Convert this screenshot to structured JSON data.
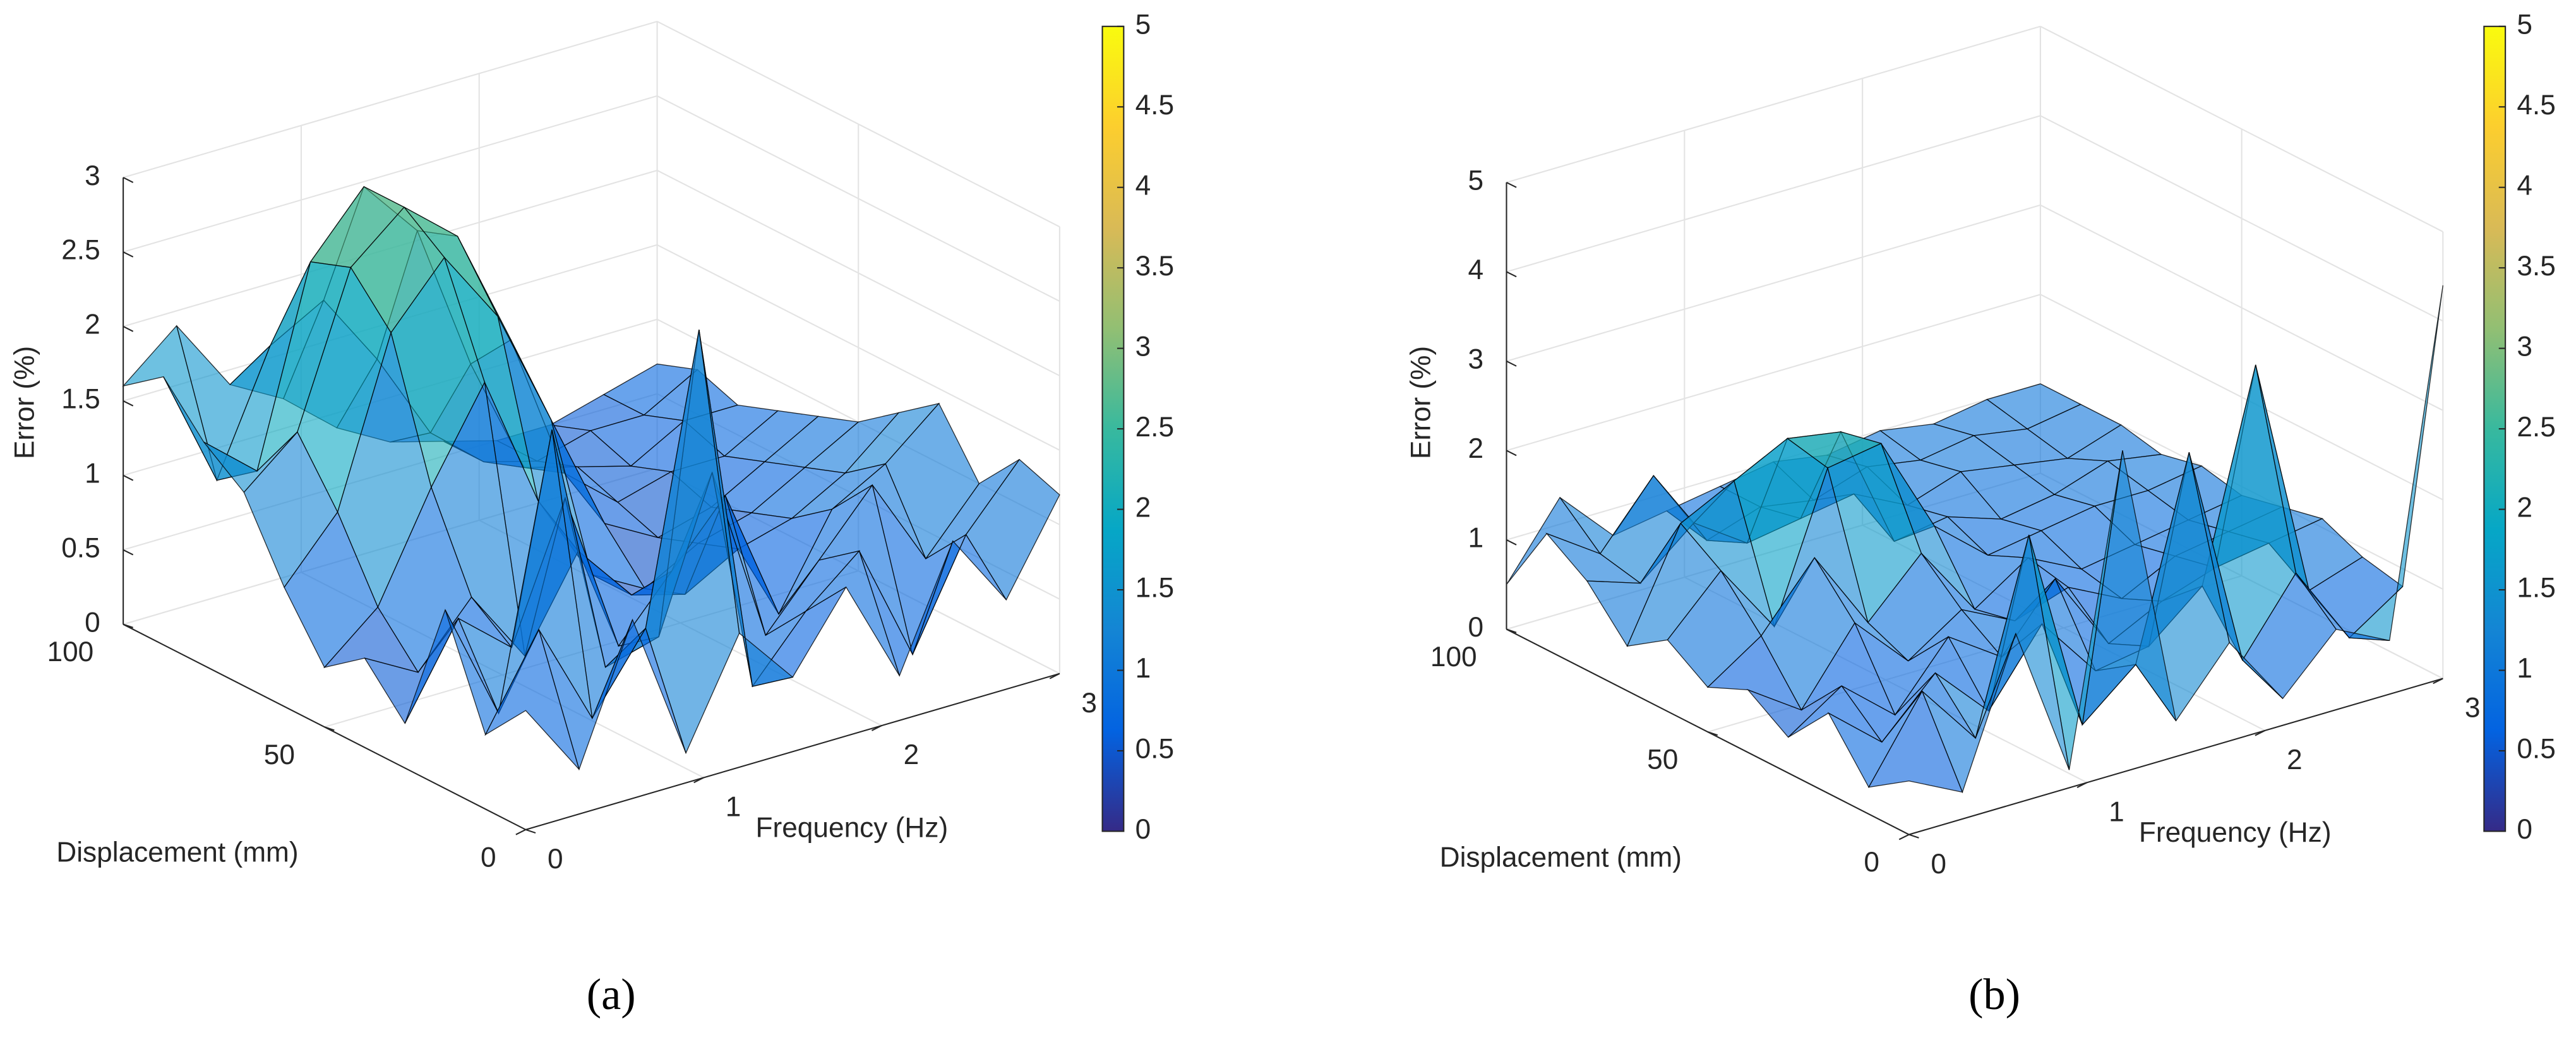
{
  "chart_data": [
    {
      "type": "surface",
      "caption": "(a)",
      "xlabel": "Frequency (Hz)",
      "ylabel": "Displacement (mm)",
      "zlabel": "Error (%)",
      "x": [
        0,
        0.3,
        0.6,
        0.9,
        1.2,
        1.5,
        1.8,
        2.1,
        2.4,
        2.7,
        3.0
      ],
      "y": [
        0,
        10,
        20,
        30,
        40,
        50,
        60,
        70,
        80,
        90,
        100
      ],
      "z": [
        [
          0.8,
          0.3,
          1.2,
          0.2,
          0.9,
          0.5,
          1.0,
          0.3,
          1.1,
          0.6,
          1.2
        ],
        [
          0.5,
          1.1,
          0.4,
          0.9,
          2.8,
          0.3,
          0.7,
          1.0,
          0.2,
          0.9,
          1.3
        ],
        [
          1.2,
          0.4,
          2.2,
          0.5,
          0.6,
          1.6,
          0.4,
          0.8,
          1.2,
          0.6,
          1.0
        ],
        [
          0.3,
          0.9,
          0.6,
          1.5,
          0.4,
          0.8,
          1.2,
          0.3,
          0.9,
          1.1,
          1.4
        ],
        [
          0.6,
          0.4,
          0.8,
          0.3,
          0.9,
          0.5,
          0.4,
          0.6,
          0.7,
          0.9,
          1.2
        ],
        [
          0.4,
          0.7,
          1.4,
          2.0,
          1.1,
          0.5,
          0.3,
          0.5,
          0.6,
          0.8,
          1.0
        ],
        [
          0.8,
          1.2,
          2.3,
          2.7,
          2.2,
          1.4,
          0.6,
          0.4,
          0.5,
          0.7,
          0.9
        ],
        [
          1.3,
          1.6,
          2.6,
          2.9,
          2.6,
          1.8,
          0.8,
          0.5,
          0.6,
          0.6,
          0.8
        ],
        [
          1.5,
          1.2,
          2.5,
          2.9,
          2.5,
          1.5,
          0.7,
          0.6,
          0.5,
          0.7,
          0.7
        ],
        [
          1.8,
          1.0,
          1.8,
          2.0,
          1.5,
          0.9,
          0.6,
          0.5,
          0.6,
          0.6,
          0.8
        ],
        [
          1.6,
          1.9,
          1.4,
          1.2,
          0.9,
          0.7,
          0.6,
          0.5,
          0.5,
          0.6,
          0.7
        ]
      ],
      "xlim": [
        0,
        3
      ],
      "xticks": [
        0,
        1,
        2,
        3
      ],
      "ylim": [
        0,
        100
      ],
      "yticks": [
        0,
        50,
        100
      ],
      "zlim": [
        0,
        3
      ],
      "zticks": [
        0,
        0.5,
        1,
        1.5,
        2,
        2.5,
        3
      ],
      "clim": [
        0,
        5
      ],
      "cticks": [
        0,
        0.5,
        1,
        1.5,
        2,
        2.5,
        3,
        3.5,
        4,
        4.5,
        5
      ],
      "colormap": [
        "#352a87",
        "#0363e1",
        "#1485d4",
        "#06a7c6",
        "#38b99e",
        "#92bf73",
        "#d9ba56",
        "#fcce2e",
        "#f9fb0e"
      ],
      "grid": true
    },
    {
      "type": "surface",
      "caption": "(b)",
      "xlabel": "Frequency (Hz)",
      "ylabel": "Displacement (mm)",
      "zlabel": "Error (%)",
      "x": [
        0,
        0.3,
        0.6,
        0.9,
        1.2,
        1.5,
        1.8,
        2.1,
        2.4,
        2.7,
        3.0
      ],
      "y": [
        0,
        10,
        20,
        30,
        40,
        50,
        60,
        70,
        80,
        90,
        100
      ],
      "z": [
        [
          0.6,
          0.3,
          1.9,
          0.2,
          3.6,
          0.4,
          1.1,
          0.3,
          0.9,
          0.6,
          4.4
        ],
        [
          0.3,
          1.2,
          0.5,
          2.6,
          0.3,
          0.8,
          3.0,
          0.5,
          1.3,
          0.4,
          0.8
        ],
        [
          0.9,
          0.4,
          1.0,
          0.4,
          1.2,
          0.5,
          0.6,
          1.1,
          3.4,
          0.7,
          0.9
        ],
        [
          0.4,
          0.8,
          0.3,
          1.0,
          0.6,
          1.3,
          0.4,
          0.7,
          0.9,
          1.0,
          1.1
        ],
        [
          0.7,
          0.3,
          1.1,
          0.5,
          0.9,
          0.6,
          0.8,
          0.5,
          0.8,
          0.9,
          1.0
        ],
        [
          0.5,
          0.9,
          1.6,
          0.7,
          1.3,
          0.5,
          0.9,
          0.6,
          0.7,
          0.8,
          0.9
        ],
        [
          0.8,
          1.4,
          0.6,
          2.2,
          2.3,
          1.2,
          0.7,
          0.8,
          0.9,
          0.9,
          1.0
        ],
        [
          0.5,
          1.7,
          2.0,
          2.3,
          2.2,
          0.8,
          0.9,
          0.7,
          0.8,
          1.0,
          0.9
        ],
        [
          1.0,
          0.8,
          1.3,
          0.9,
          1.0,
          1.1,
          0.8,
          1.0,
          0.9,
          0.8,
          1.0
        ],
        [
          1.3,
          0.9,
          1.6,
          0.7,
          0.9,
          0.8,
          1.0,
          0.9,
          1.0,
          0.9,
          1.0
        ],
        [
          0.5,
          1.3,
          0.7,
          0.8,
          0.9,
          1.0,
          0.9,
          1.0,
          0.9,
          1.0,
          1.0
        ]
      ],
      "xlim": [
        0,
        3
      ],
      "xticks": [
        0,
        1,
        2,
        3
      ],
      "ylim": [
        0,
        100
      ],
      "yticks": [
        0,
        50,
        100
      ],
      "zlim": [
        0,
        5
      ],
      "zticks": [
        0,
        1,
        2,
        3,
        4,
        5
      ],
      "clim": [
        0,
        5
      ],
      "cticks": [
        0,
        0.5,
        1,
        1.5,
        2,
        2.5,
        3,
        3.5,
        4,
        4.5,
        5
      ],
      "colormap": [
        "#352a87",
        "#0363e1",
        "#1485d4",
        "#06a7c6",
        "#38b99e",
        "#92bf73",
        "#d9ba56",
        "#fcce2e",
        "#f9fb0e"
      ],
      "grid": true
    }
  ]
}
